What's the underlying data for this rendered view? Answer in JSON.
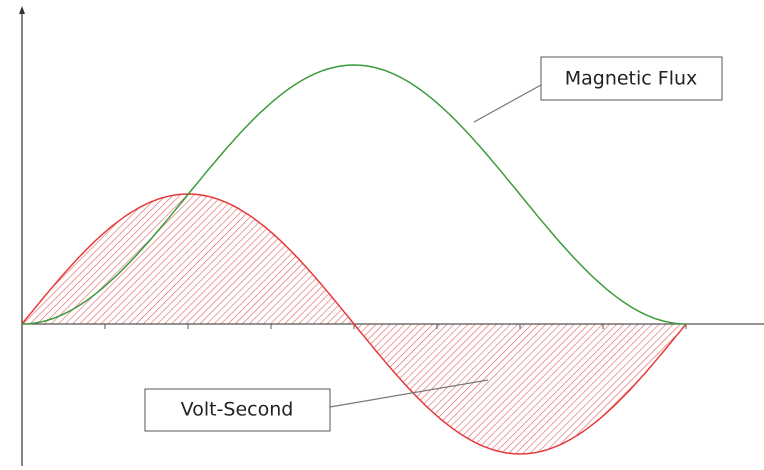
{
  "labels": {
    "flux": "Magnetic Flux",
    "volt_second": "Volt-Second"
  }
}
